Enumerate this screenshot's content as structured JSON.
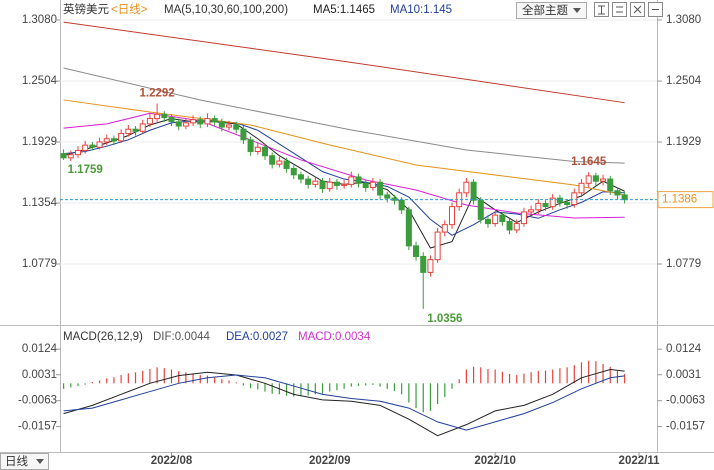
{
  "toolbar": {
    "theme_button": "全部主题"
  },
  "period_selector": "日线",
  "chart_data": [
    {
      "type": "candlestick",
      "title": "英镑美元",
      "period": "<日线>",
      "subtitle": "MA(5,10,30,60,100,200)",
      "up_color": "#e8413c",
      "down_color": "#3b9c3b",
      "xlim": [
        -0.5,
        82.5
      ],
      "ylim": [
        1.0251,
        1.3174
      ],
      "yticks": [
        {
          "value": 1.308,
          "label": "1.3080"
        },
        1.2504,
        1.1929,
        1.1354,
        1.0779
      ],
      "xticks": [
        {
          "value": 15,
          "label": "2022/08"
        },
        {
          "value": 37,
          "label": "2022/09"
        },
        {
          "value": 60,
          "label": "2022/10"
        },
        {
          "value": 80,
          "label": "2022/11"
        }
      ],
      "grid": true,
      "last": 1.1386,
      "last_color": "#2a9bd6",
      "candles": [
        [
          1.182,
          1.186,
          1.1759,
          1.178
        ],
        [
          1.178,
          1.185,
          1.175,
          1.181
        ],
        [
          1.181,
          1.189,
          1.178,
          1.185
        ],
        [
          1.185,
          1.194,
          1.182,
          1.19
        ],
        [
          1.19,
          1.193,
          1.185,
          1.188
        ],
        [
          1.188,
          1.197,
          1.186,
          1.193
        ],
        [
          1.193,
          1.2,
          1.19,
          1.196
        ],
        [
          1.196,
          1.199,
          1.19,
          1.194
        ],
        [
          1.194,
          1.205,
          1.192,
          1.201
        ],
        [
          1.201,
          1.209,
          1.198,
          1.205
        ],
        [
          1.205,
          1.208,
          1.199,
          1.203
        ],
        [
          1.203,
          1.214,
          1.201,
          1.21
        ],
        [
          1.21,
          1.22,
          1.207,
          1.215
        ],
        [
          1.215,
          1.2292,
          1.212,
          1.219
        ],
        [
          1.219,
          1.222,
          1.212,
          1.216
        ],
        [
          1.216,
          1.219,
          1.208,
          1.212
        ],
        [
          1.212,
          1.215,
          1.204,
          1.208
        ],
        [
          1.208,
          1.215,
          1.205,
          1.211
        ],
        [
          1.211,
          1.218,
          1.208,
          1.214
        ],
        [
          1.214,
          1.217,
          1.206,
          1.21
        ],
        [
          1.21,
          1.22,
          1.207,
          1.215
        ],
        [
          1.215,
          1.218,
          1.208,
          1.212
        ],
        [
          1.212,
          1.215,
          1.203,
          1.207
        ],
        [
          1.207,
          1.213,
          1.204,
          1.209
        ],
        [
          1.209,
          1.212,
          1.201,
          1.205
        ],
        [
          1.205,
          1.208,
          1.191,
          1.195
        ],
        [
          1.195,
          1.198,
          1.18,
          1.184
        ],
        [
          1.184,
          1.192,
          1.181,
          1.188
        ],
        [
          1.188,
          1.191,
          1.176,
          1.18
        ],
        [
          1.18,
          1.183,
          1.168,
          1.172
        ],
        [
          1.172,
          1.179,
          1.169,
          1.175
        ],
        [
          1.175,
          1.178,
          1.164,
          1.168
        ],
        [
          1.168,
          1.171,
          1.158,
          1.162
        ],
        [
          1.162,
          1.165,
          1.154,
          1.158
        ],
        [
          1.158,
          1.161,
          1.149,
          1.153
        ],
        [
          1.153,
          1.16,
          1.15,
          1.156
        ],
        [
          1.156,
          1.159,
          1.145,
          1.149
        ],
        [
          1.149,
          1.159,
          1.146,
          1.155
        ],
        [
          1.155,
          1.158,
          1.148,
          1.152
        ],
        [
          1.152,
          1.157,
          1.149,
          1.153
        ],
        [
          1.153,
          1.165,
          1.15,
          1.16
        ],
        [
          1.16,
          1.163,
          1.15,
          1.154
        ],
        [
          1.154,
          1.157,
          1.146,
          1.15
        ],
        [
          1.15,
          1.159,
          1.147,
          1.155
        ],
        [
          1.155,
          1.158,
          1.139,
          1.143
        ],
        [
          1.143,
          1.146,
          1.136,
          1.14
        ],
        [
          1.14,
          1.143,
          1.134,
          1.138
        ],
        [
          1.138,
          1.141,
          1.125,
          1.129
        ],
        [
          1.129,
          1.132,
          1.091,
          1.095
        ],
        [
          1.095,
          1.099,
          1.081,
          1.085
        ],
        [
          1.085,
          1.089,
          1.0356,
          1.07
        ],
        [
          1.07,
          1.086,
          1.066,
          1.082
        ],
        [
          1.082,
          1.112,
          1.079,
          1.108
        ],
        [
          1.108,
          1.119,
          1.104,
          1.115
        ],
        [
          1.115,
          1.136,
          1.111,
          1.132
        ],
        [
          1.132,
          1.149,
          1.128,
          1.145
        ],
        [
          1.145,
          1.159,
          1.141,
          1.155
        ],
        [
          1.155,
          1.158,
          1.134,
          1.138
        ],
        [
          1.138,
          1.141,
          1.116,
          1.12
        ],
        [
          1.12,
          1.124,
          1.112,
          1.116
        ],
        [
          1.116,
          1.128,
          1.113,
          1.124
        ],
        [
          1.124,
          1.127,
          1.114,
          1.118
        ],
        [
          1.118,
          1.121,
          1.106,
          1.11
        ],
        [
          1.11,
          1.12,
          1.107,
          1.116
        ],
        [
          1.116,
          1.131,
          1.113,
          1.127
        ],
        [
          1.127,
          1.133,
          1.124,
          1.129
        ],
        [
          1.129,
          1.139,
          1.125,
          1.135
        ],
        [
          1.135,
          1.138,
          1.128,
          1.132
        ],
        [
          1.132,
          1.144,
          1.129,
          1.14
        ],
        [
          1.14,
          1.143,
          1.132,
          1.136
        ],
        [
          1.136,
          1.139,
          1.13,
          1.134
        ],
        [
          1.134,
          1.149,
          1.131,
          1.145
        ],
        [
          1.145,
          1.158,
          1.141,
          1.154
        ],
        [
          1.154,
          1.1645,
          1.15,
          1.161
        ],
        [
          1.161,
          1.164,
          1.152,
          1.156
        ],
        [
          1.156,
          1.162,
          1.152,
          1.158
        ],
        [
          1.158,
          1.161,
          1.143,
          1.147
        ],
        [
          1.147,
          1.15,
          1.139,
          1.143
        ],
        [
          1.143,
          1.146,
          1.135,
          1.1386
        ]
      ],
      "annotations": [
        1.2292,
        1.1759,
        1.0356,
        1.1645
      ],
      "high_label_color": "#b0503a",
      "low_label_color": "#4a9a3a",
      "series": [
        {
          "name": "MA5:1.1465",
          "color": "#222222",
          "x": [
            0,
            3,
            6,
            9,
            12,
            15,
            18,
            21,
            24,
            27,
            30,
            33,
            36,
            39,
            42,
            45,
            48,
            51,
            54,
            57,
            60,
            63,
            66,
            69,
            72,
            75,
            78
          ],
          "values": [
            1.18,
            1.186,
            1.192,
            1.199,
            1.209,
            1.215,
            1.212,
            1.212,
            1.21,
            1.196,
            1.18,
            1.168,
            1.156,
            1.153,
            1.155,
            1.148,
            1.129,
            1.093,
            1.099,
            1.143,
            1.129,
            1.117,
            1.127,
            1.135,
            1.142,
            1.156,
            1.1465
          ]
        },
        {
          "name": "MA10:1.145",
          "color": "#1f3f9a",
          "x": [
            0,
            3,
            6,
            9,
            12,
            15,
            18,
            21,
            24,
            27,
            30,
            33,
            36,
            39,
            42,
            45,
            48,
            51,
            54,
            57,
            60,
            63,
            66,
            69,
            72,
            75,
            78
          ],
          "values": [
            1.182,
            1.184,
            1.189,
            1.195,
            1.204,
            1.211,
            1.213,
            1.213,
            1.211,
            1.204,
            1.191,
            1.178,
            1.165,
            1.158,
            1.155,
            1.151,
            1.141,
            1.12,
            1.105,
            1.115,
            1.127,
            1.125,
            1.121,
            1.129,
            1.136,
            1.146,
            1.145
          ]
        },
        {
          "color": "#d81ed8",
          "x": [
            0,
            6,
            12,
            19,
            26,
            33,
            42,
            49,
            56,
            63,
            71,
            78
          ],
          "values": [
            1.206,
            1.21,
            1.22,
            1.213,
            1.1948,
            1.176,
            1.1571,
            1.1477,
            1.1335,
            1.126,
            1.1213,
            1.122
          ]
        },
        {
          "color": "#e8901a",
          "x": [
            0,
            12,
            26,
            37,
            49,
            60,
            71,
            78
          ],
          "values": [
            1.2326,
            1.2212,
            1.209,
            1.1901,
            1.1713,
            1.1618,
            1.1524,
            1.143
          ]
        },
        {
          "color": "#8a8a8a",
          "x": [
            0,
            19,
            40,
            56,
            71,
            78
          ],
          "values": [
            1.2627,
            1.2325,
            1.2043,
            1.1854,
            1.1745,
            1.173
          ]
        },
        {
          "color": "#c0392b",
          "x": [
            0,
            39,
            78
          ],
          "values": [
            1.306,
            1.269,
            1.23
          ]
        }
      ]
    },
    {
      "type": "macd",
      "title": "MACD(26,12,9)",
      "xlim": [
        -0.5,
        82.5
      ],
      "ylim": [
        -0.0242,
        0.0139
      ],
      "yticks": [
        0.0124,
        0.0031,
        -0.0063,
        -0.0157
      ],
      "up_color": "#e8413c",
      "down_color": "#3b9c3b",
      "histogram": {
        "name": "MACD:0.0034",
        "color": "#cc33cc",
        "values": [
          -0.002,
          -0.0015,
          -0.001,
          -0.0005,
          0.0005,
          0.001,
          0.0018,
          0.0022,
          0.003,
          0.0036,
          0.004,
          0.0045,
          0.0052,
          0.0058,
          0.0055,
          0.005,
          0.0044,
          0.004,
          0.0036,
          0.003,
          0.0028,
          0.0022,
          0.0015,
          0.001,
          0.0004,
          -0.0008,
          -0.0018,
          -0.0022,
          -0.003,
          -0.0038,
          -0.004,
          -0.0045,
          -0.0048,
          -0.0046,
          -0.0044,
          -0.004,
          -0.0038,
          -0.003,
          -0.0025,
          -0.002,
          -0.0012,
          -0.001,
          -0.0008,
          -0.0006,
          -0.0012,
          -0.002,
          -0.0028,
          -0.004,
          -0.007,
          -0.009,
          -0.0105,
          -0.01,
          -0.0075,
          -0.005,
          -0.002,
          0.0015,
          0.005,
          0.006,
          0.0058,
          0.0052,
          0.005,
          0.0042,
          0.0034,
          0.003,
          0.0035,
          0.004,
          0.0045,
          0.0046,
          0.005,
          0.0055,
          0.0058,
          0.0066,
          0.0076,
          0.0082,
          0.008,
          0.007,
          0.006,
          0.0045,
          0.0034
        ]
      },
      "series": [
        {
          "name": "DIF:0.0044",
          "color": "#222222",
          "label_color": "#555555",
          "x": [
            0,
            4,
            8,
            12,
            16,
            20,
            24,
            28,
            32,
            36,
            40,
            44,
            48,
            52,
            56,
            60,
            64,
            68,
            72,
            76,
            78
          ],
          "values": [
            -0.011,
            -0.008,
            -0.004,
            0.0,
            0.0028,
            0.004,
            0.003,
            0.0,
            -0.004,
            -0.006,
            -0.0065,
            -0.008,
            -0.013,
            -0.019,
            -0.015,
            -0.01,
            -0.008,
            -0.004,
            0.002,
            0.005,
            0.0044
          ]
        },
        {
          "name": "DEA:0.0027",
          "color": "#1f3f9a",
          "label_color": "#1f3f9a",
          "x": [
            0,
            4,
            8,
            12,
            16,
            20,
            24,
            28,
            32,
            36,
            40,
            44,
            48,
            52,
            56,
            60,
            64,
            68,
            72,
            76,
            78
          ],
          "values": [
            -0.01,
            -0.009,
            -0.006,
            -0.003,
            0.0,
            0.002,
            0.003,
            0.002,
            -0.001,
            -0.004,
            -0.0055,
            -0.0065,
            -0.009,
            -0.014,
            -0.017,
            -0.014,
            -0.011,
            -0.007,
            -0.002,
            0.002,
            0.0027
          ]
        }
      ]
    }
  ]
}
